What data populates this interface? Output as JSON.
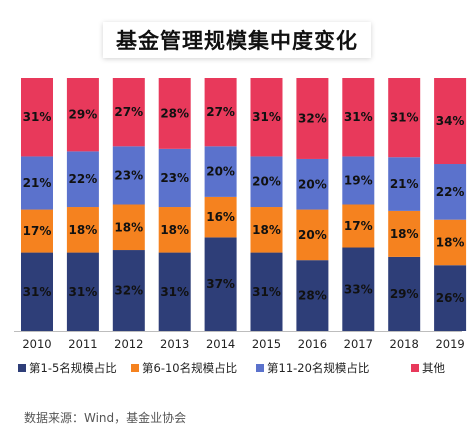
{
  "chart_data": {
    "type": "bar",
    "stacked": true,
    "title": "基金管理规模集中度变化",
    "categories": [
      "2010",
      "2011",
      "2012",
      "2013",
      "2014",
      "2015",
      "2016",
      "2017",
      "2018",
      "2019"
    ],
    "series": [
      {
        "name": "第1-5名规模占比",
        "color": "#2E3E78",
        "values": [
          31,
          31,
          32,
          31,
          37,
          31,
          28,
          33,
          29,
          26
        ]
      },
      {
        "name": "第6-10名规模占比",
        "color": "#F5821F",
        "values": [
          17,
          18,
          18,
          18,
          16,
          18,
          20,
          17,
          18,
          18
        ]
      },
      {
        "name": "第11-20名规模占比",
        "color": "#5B72CC",
        "values": [
          21,
          22,
          23,
          23,
          20,
          20,
          20,
          19,
          21,
          22
        ]
      },
      {
        "name": "其他",
        "color": "#E8395B",
        "values": [
          31,
          29,
          27,
          28,
          27,
          31,
          32,
          31,
          31,
          34
        ]
      }
    ],
    "value_suffix": "%",
    "legend_position": "bottom"
  },
  "source_note": "数据来源：Wind，基金业协会"
}
